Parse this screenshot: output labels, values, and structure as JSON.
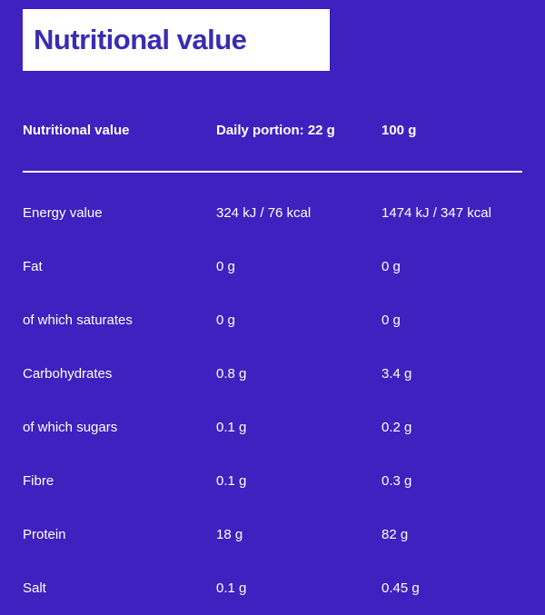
{
  "theme": {
    "background_color": "#3e21bf",
    "title_background": "#ffffff",
    "title_text_color": "#3b2bb2",
    "body_text_color": "#ffffff"
  },
  "header": {
    "title": "Nutritional value"
  },
  "table": {
    "columns": {
      "name": "Nutritional value",
      "daily": "Daily portion: 22 g",
      "per_100g": "100 g"
    },
    "rows": [
      {
        "label": "Energy value",
        "daily": "324 kJ / 76 kcal",
        "per_100g": "1474 kJ / 347 kcal"
      },
      {
        "label": "Fat",
        "daily": "0 g",
        "per_100g": "0 g"
      },
      {
        "label": "of which saturates",
        "daily": "0 g",
        "per_100g": "0 g"
      },
      {
        "label": "Carbohydrates",
        "daily": "0.8 g",
        "per_100g": "3.4 g"
      },
      {
        "label": "of which sugars",
        "daily": "0.1 g",
        "per_100g": "0.2 g"
      },
      {
        "label": "Fibre",
        "daily": "0.1 g",
        "per_100g": "0.3 g"
      },
      {
        "label": "Protein",
        "daily": "18 g",
        "per_100g": "82 g"
      },
      {
        "label": "Salt",
        "daily": "0.1 g",
        "per_100g": "0.45 g"
      }
    ]
  }
}
